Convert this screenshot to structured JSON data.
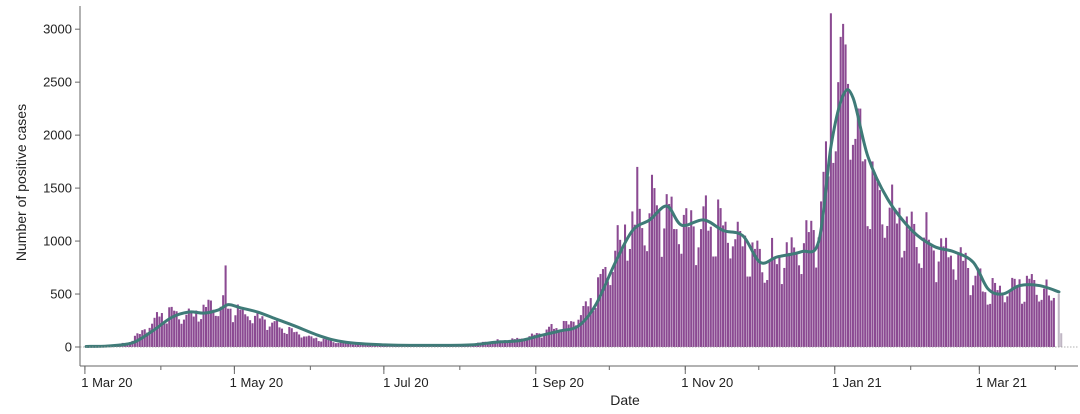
{
  "chart_data": {
    "type": "bar",
    "title": "",
    "xlabel": "Date",
    "ylabel": "Number of positive cases",
    "ylim": [
      0,
      3200
    ],
    "x_range": [
      "2020-02-28",
      "2021-04-07"
    ],
    "y_ticks": [
      0,
      500,
      1000,
      1500,
      2000,
      2500,
      3000
    ],
    "x_ticks": [
      {
        "date": "2020-03-01",
        "label": "1 Mar 20"
      },
      {
        "date": "2020-05-01",
        "label": "1 May 20"
      },
      {
        "date": "2020-07-01",
        "label": "1 Jul 20"
      },
      {
        "date": "2020-09-01",
        "label": "1 Sep 20"
      },
      {
        "date": "2020-11-01",
        "label": "1 Nov 20"
      },
      {
        "date": "2021-01-01",
        "label": "1 Jan 21"
      },
      {
        "date": "2021-03-01",
        "label": "1 Mar 21"
      }
    ],
    "grid": false,
    "legend": "none",
    "colors": {
      "bars": "#8b4a92",
      "incomplete_bars": "#c0b6c4",
      "average_line": "#3f7b78",
      "axis": "#666666"
    },
    "series": [
      {
        "kind": "bar",
        "daily_anchors": [
          [
            "2020-03-01",
            0
          ],
          [
            "2020-03-10",
            10
          ],
          [
            "2020-03-18",
            40
          ],
          [
            "2020-03-24",
            150
          ],
          [
            "2020-04-01",
            320
          ],
          [
            "2020-04-05",
            330
          ],
          [
            "2020-04-10",
            300
          ],
          [
            "2020-04-16",
            330
          ],
          [
            "2020-04-20",
            400
          ],
          [
            "2020-04-25",
            390
          ],
          [
            "2020-05-01",
            360
          ],
          [
            "2020-05-08",
            300
          ],
          [
            "2020-05-15",
            240
          ],
          [
            "2020-05-22",
            170
          ],
          [
            "2020-06-01",
            90
          ],
          [
            "2020-06-15",
            35
          ],
          [
            "2020-07-01",
            20
          ],
          [
            "2020-07-20",
            15
          ],
          [
            "2020-08-01",
            20
          ],
          [
            "2020-08-15",
            55
          ],
          [
            "2020-08-25",
            80
          ],
          [
            "2020-09-01",
            120
          ],
          [
            "2020-09-08",
            190
          ],
          [
            "2020-09-15",
            230
          ],
          [
            "2020-09-22",
            400
          ],
          [
            "2020-10-01",
            800
          ],
          [
            "2020-10-08",
            1150
          ],
          [
            "2020-10-15",
            1250
          ],
          [
            "2020-10-22",
            1350
          ],
          [
            "2020-10-28",
            1200
          ],
          [
            "2020-11-05",
            1150
          ],
          [
            "2020-11-12",
            1200
          ],
          [
            "2020-11-20",
            1100
          ],
          [
            "2020-11-28",
            900
          ],
          [
            "2020-12-05",
            800
          ],
          [
            "2020-12-12",
            900
          ],
          [
            "2020-12-20",
            1000
          ],
          [
            "2020-12-26",
            1300
          ],
          [
            "2020-12-30",
            2000
          ],
          [
            "2021-01-02",
            2700
          ],
          [
            "2021-01-06",
            2600
          ],
          [
            "2021-01-10",
            2000
          ],
          [
            "2021-01-16",
            1500
          ],
          [
            "2021-01-24",
            1300
          ],
          [
            "2021-02-01",
            1100
          ],
          [
            "2021-02-10",
            950
          ],
          [
            "2021-02-18",
            900
          ],
          [
            "2021-02-25",
            750
          ],
          [
            "2021-03-03",
            550
          ],
          [
            "2021-03-10",
            550
          ],
          [
            "2021-03-17",
            600
          ],
          [
            "2021-03-24",
            600
          ],
          [
            "2021-03-31",
            450
          ]
        ],
        "spikes": [
          [
            "2020-04-27",
            770
          ],
          [
            "2020-10-12",
            1700
          ],
          [
            "2020-12-30",
            3150
          ],
          [
            "2021-01-04",
            3050
          ],
          [
            "2021-01-02",
            2500
          ],
          [
            "2020-10-19",
            1500
          ]
        ]
      },
      {
        "kind": "line",
        "points": [
          [
            "2020-03-01",
            5
          ],
          [
            "2020-03-10",
            10
          ],
          [
            "2020-03-20",
            40
          ],
          [
            "2020-03-28",
            150
          ],
          [
            "2020-04-05",
            280
          ],
          [
            "2020-04-12",
            330
          ],
          [
            "2020-04-18",
            320
          ],
          [
            "2020-04-24",
            350
          ],
          [
            "2020-04-28",
            400
          ],
          [
            "2020-05-03",
            370
          ],
          [
            "2020-05-10",
            330
          ],
          [
            "2020-05-18",
            260
          ],
          [
            "2020-05-25",
            200
          ],
          [
            "2020-06-05",
            100
          ],
          [
            "2020-06-15",
            45
          ],
          [
            "2020-07-01",
            20
          ],
          [
            "2020-07-20",
            15
          ],
          [
            "2020-08-05",
            20
          ],
          [
            "2020-08-15",
            45
          ],
          [
            "2020-08-25",
            60
          ],
          [
            "2020-09-01",
            100
          ],
          [
            "2020-09-10",
            150
          ],
          [
            "2020-09-18",
            200
          ],
          [
            "2020-09-25",
            400
          ],
          [
            "2020-10-03",
            800
          ],
          [
            "2020-10-10",
            1100
          ],
          [
            "2020-10-17",
            1200
          ],
          [
            "2020-10-24",
            1330
          ],
          [
            "2020-10-30",
            1150
          ],
          [
            "2020-11-08",
            1200
          ],
          [
            "2020-11-16",
            1100
          ],
          [
            "2020-11-24",
            1050
          ],
          [
            "2020-12-01",
            800
          ],
          [
            "2020-12-08",
            850
          ],
          [
            "2020-12-18",
            900
          ],
          [
            "2020-12-25",
            1000
          ],
          [
            "2020-12-30",
            1900
          ],
          [
            "2021-01-04",
            2380
          ],
          [
            "2021-01-08",
            2350
          ],
          [
            "2021-01-14",
            1800
          ],
          [
            "2021-01-22",
            1400
          ],
          [
            "2021-02-01",
            1100
          ],
          [
            "2021-02-10",
            950
          ],
          [
            "2021-02-18",
            900
          ],
          [
            "2021-02-26",
            800
          ],
          [
            "2021-03-04",
            550
          ],
          [
            "2021-03-10",
            500
          ],
          [
            "2021-03-17",
            580
          ],
          [
            "2021-03-25",
            580
          ],
          [
            "2021-04-02",
            520
          ]
        ]
      },
      {
        "kind": "incomplete_bar",
        "points": [
          [
            "2021-04-02",
            500
          ],
          [
            "2021-04-03",
            130
          ]
        ]
      }
    ]
  }
}
